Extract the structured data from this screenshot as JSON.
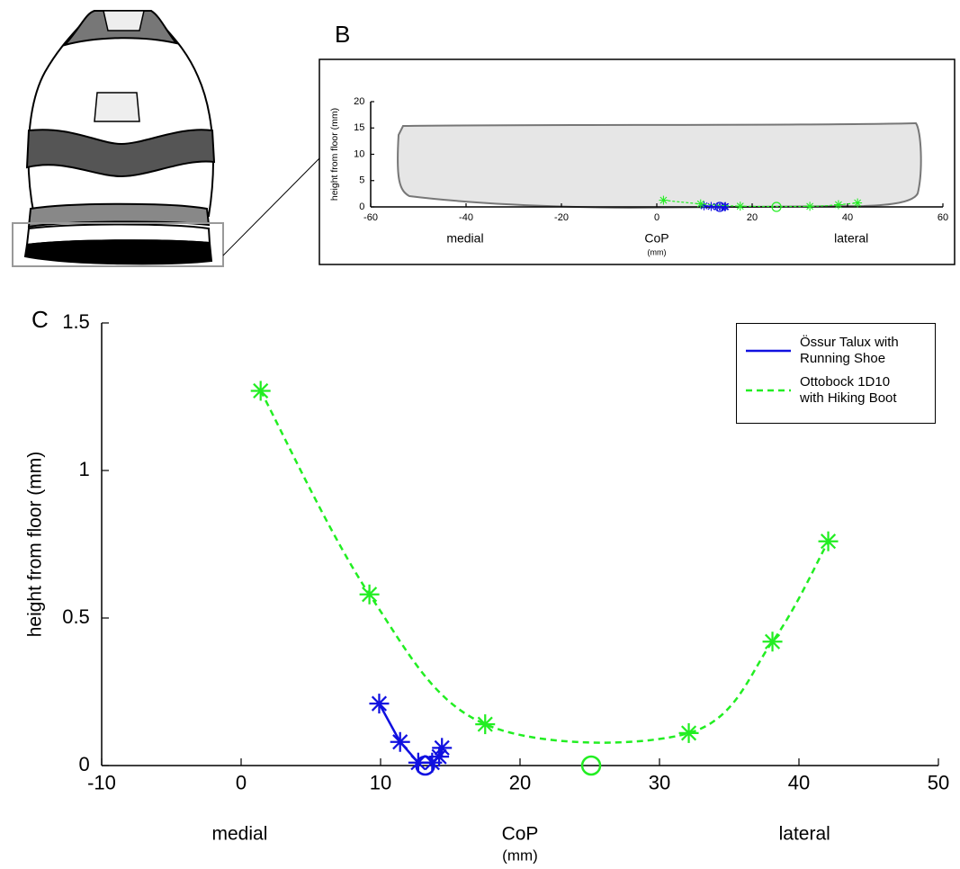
{
  "chart_data": [
    {
      "type": "line",
      "panel": "B",
      "ylabel": "height from floor (mm)",
      "xlabel": "CoP",
      "xlabel_unit": "(mm)",
      "xlabel_left": "medial",
      "xlabel_right": "lateral",
      "xlim": [
        -60,
        60
      ],
      "xticks": [
        -60,
        -40,
        -20,
        0,
        20,
        40,
        60
      ],
      "ylim": [
        0,
        20
      ],
      "yticks": [
        0,
        5,
        10,
        15,
        20
      ],
      "series": [
        {
          "color": "#1010e0",
          "linestyle": "solid",
          "x": [
            9.9,
            11.4,
            12.7,
            13.7,
            14.2,
            14.4
          ],
          "values": [
            0.21,
            0.08,
            0.01,
            0.01,
            0.03,
            0.06
          ],
          "min_x": 13.2,
          "min_y": 0
        },
        {
          "color": "#22ee22",
          "linestyle": "dashed",
          "x": [
            1.4,
            9.2,
            17.5,
            32.1,
            38.1,
            42.1
          ],
          "values": [
            1.27,
            0.58,
            0.14,
            0.11,
            0.42,
            0.76
          ],
          "min_x": 25.1,
          "min_y": 0
        }
      ]
    },
    {
      "type": "line",
      "panel": "C",
      "ylabel": "height from floor (mm)",
      "xlabel": "CoP",
      "xlabel_unit": "(mm)",
      "xlabel_left": "medial",
      "xlabel_right": "lateral",
      "xlim": [
        -10,
        50
      ],
      "xticks": [
        -10,
        0,
        10,
        20,
        30,
        40,
        50
      ],
      "ylim": [
        0,
        1.5
      ],
      "yticks": [
        0,
        0.5,
        1,
        1.5
      ],
      "legend": "upper right",
      "series": [
        {
          "name": "Össur Talux with Running Shoe",
          "color": "#1010e0",
          "linestyle": "solid",
          "x": [
            9.9,
            11.4,
            12.7,
            13.7,
            14.2,
            14.4
          ],
          "values": [
            0.21,
            0.08,
            0.01,
            0.01,
            0.03,
            0.06
          ],
          "min_x": 13.2,
          "min_y": 0
        },
        {
          "name": "Ottobock 1D10 with Hiking Boot",
          "color": "#22ee22",
          "linestyle": "dashed",
          "x": [
            1.4,
            9.2,
            17.5,
            32.1,
            38.1,
            42.1
          ],
          "values": [
            1.27,
            0.58,
            0.14,
            0.11,
            0.42,
            0.76
          ],
          "min_x": 25.1,
          "min_y": 0
        }
      ]
    }
  ]
}
